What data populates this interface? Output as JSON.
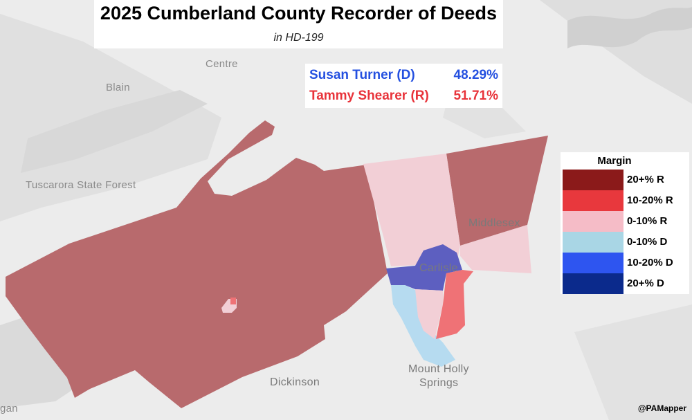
{
  "title": "2025 Cumberland County Recorder of Deeds",
  "subtitle": "in HD-199",
  "results": [
    {
      "candidate": "Susan Turner (D)",
      "percent": "48.29%",
      "color": "#2450e0"
    },
    {
      "candidate": "Tammy Shearer (R)",
      "percent": "51.71%",
      "color": "#e8333a"
    }
  ],
  "legend": {
    "title": "Margin",
    "items": [
      {
        "label": "20+% R",
        "color": "#8b1a1a"
      },
      {
        "label": "10-20% R",
        "color": "#e8383d"
      },
      {
        "label": "0-10% R",
        "color": "#f5bcc7"
      },
      {
        "label": "0-10% D",
        "color": "#a9d6e5"
      },
      {
        "label": "10-20% D",
        "color": "#2e55f0"
      },
      {
        "label": "20+% D",
        "color": "#0b2a8c"
      }
    ]
  },
  "places": {
    "centre": "Centre",
    "blain": "Blain",
    "tuscarora": "Tuscarora State Forest",
    "middlesex": "Middlesex",
    "carlisle": "Carlisle",
    "dickinson": "Dickinson",
    "mount_holly_1": "Mount Holly",
    "mount_holly_2": "Springs",
    "gan": "gan"
  },
  "credit": "@PAMapper",
  "map_colors": {
    "background": "#ececec",
    "land_shade": "#dcdcdc",
    "district_20r": "#b86a6d",
    "district_0_10r": "#f2cfd6",
    "district_10_20r": "#ef7276",
    "district_10_20d": "#5d5fc0",
    "district_0_10d": "#b6dbf0",
    "river": "#d3d3d3"
  }
}
